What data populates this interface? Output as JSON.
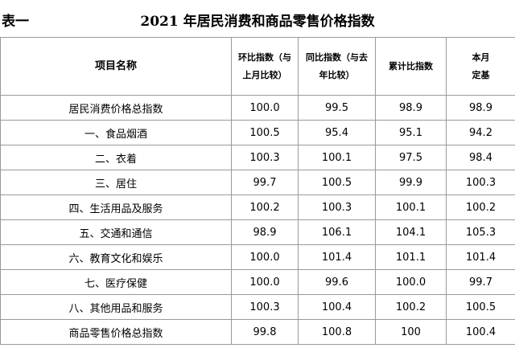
{
  "header": {
    "label": "表一",
    "title": "2021 年居民消费和商品零售价格指数"
  },
  "table": {
    "columns": [
      [
        "项目名称"
      ],
      [
        "环比指数（与",
        "上月比较）"
      ],
      [
        "同比指数（与去",
        "年比较）"
      ],
      [
        "累计比指数"
      ],
      [
        "本月",
        "定基"
      ]
    ],
    "rows": [
      [
        "居民消费价格总指数",
        "100.0",
        "99.5",
        "98.9",
        "98.9"
      ],
      [
        "一、食品烟酒",
        "100.5",
        "95.4",
        "95.1",
        "94.2"
      ],
      [
        "二、衣着",
        "100.3",
        "100.1",
        "97.5",
        "98.4"
      ],
      [
        "三、居住",
        "99.7",
        "100.5",
        "99.9",
        "100.3"
      ],
      [
        "四、生活用品及服务",
        "100.2",
        "100.3",
        "100.1",
        "100.2"
      ],
      [
        "五、交通和通信",
        "98.9",
        "106.1",
        "104.1",
        "105.3"
      ],
      [
        "六、教育文化和娱乐",
        "100.0",
        "101.4",
        "101.1",
        "101.4"
      ],
      [
        "七、医疗保健",
        "100.0",
        "99.6",
        "100.0",
        "99.7"
      ],
      [
        "八、其他用品和服务",
        "100.3",
        "100.4",
        "100.2",
        "100.5"
      ],
      [
        "商品零售价格总指数",
        "99.8",
        "100.8",
        "100",
        "100.4"
      ]
    ]
  }
}
